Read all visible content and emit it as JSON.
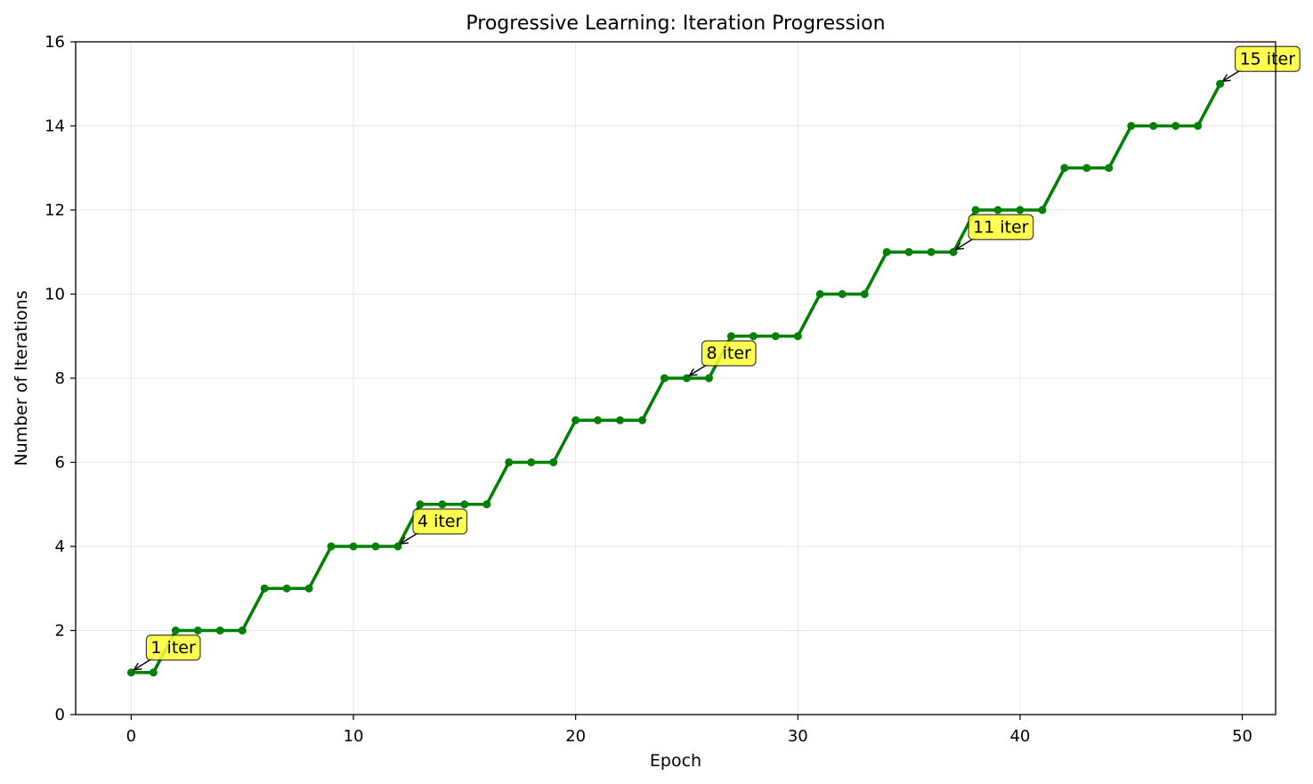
{
  "chart_data": {
    "type": "line",
    "title": "Progressive Learning: Iteration Progression",
    "xlabel": "Epoch",
    "ylabel": "Number of Iterations",
    "xlim": [
      -2.5,
      51.5
    ],
    "ylim": [
      0,
      16
    ],
    "xticks": [
      0,
      10,
      20,
      30,
      40,
      50
    ],
    "yticks": [
      0,
      2,
      4,
      6,
      8,
      10,
      12,
      14,
      16
    ],
    "grid": true,
    "line_color": "#008000",
    "series": [
      {
        "x": [
          0,
          1,
          2,
          3,
          4,
          5,
          6,
          7,
          8,
          9,
          10,
          11,
          12,
          13,
          14,
          15,
          16,
          17,
          18,
          19,
          20,
          21,
          22,
          23,
          24,
          25,
          26,
          27,
          28,
          29,
          30,
          31,
          32,
          33,
          34,
          35,
          36,
          37,
          38,
          39,
          40,
          41,
          42,
          43,
          44,
          45,
          46,
          47,
          48,
          49
        ],
        "values": [
          1,
          1,
          2,
          2,
          2,
          2,
          3,
          3,
          3,
          4,
          4,
          4,
          4,
          5,
          5,
          5,
          5,
          6,
          6,
          6,
          7,
          7,
          7,
          7,
          8,
          8,
          8,
          9,
          9,
          9,
          9,
          10,
          10,
          10,
          11,
          11,
          11,
          11,
          12,
          12,
          12,
          12,
          13,
          13,
          13,
          14,
          14,
          14,
          14,
          15
        ]
      }
    ],
    "annotations": [
      {
        "x": 0,
        "y": 1,
        "text": "1 iter"
      },
      {
        "x": 12,
        "y": 4,
        "text": "4 iter"
      },
      {
        "x": 25,
        "y": 8,
        "text": "8 iter"
      },
      {
        "x": 37,
        "y": 11,
        "text": "11 iter"
      },
      {
        "x": 49,
        "y": 15,
        "text": "15 iter"
      }
    ],
    "annotation_box_color": "#ffff33"
  }
}
